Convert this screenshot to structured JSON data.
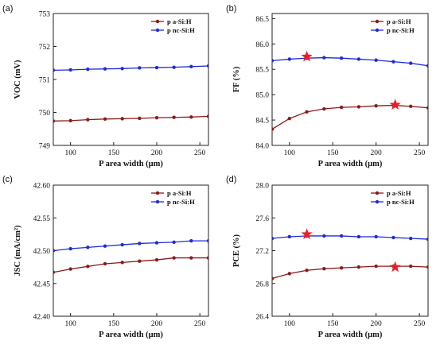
{
  "chart_data": [
    {
      "type": "line",
      "panel_label": "(a)",
      "xlabel": "P area width (μm)",
      "ylabel": "VOC (mV)",
      "xlim": [
        80,
        260
      ],
      "ylim": [
        749,
        753
      ],
      "xticks": [
        100,
        150,
        200,
        250
      ],
      "yticks": [
        749,
        750,
        751,
        752,
        753
      ],
      "yticklabels": [
        "749",
        "750",
        "751",
        "752",
        "753"
      ],
      "legend_position": "top-right",
      "series": [
        {
          "name": "p a-Si:H",
          "color": "#8b1a1a",
          "x": [
            80,
            100,
            120,
            140,
            160,
            180,
            200,
            220,
            240,
            260
          ],
          "values": [
            749.74,
            749.75,
            749.78,
            749.8,
            749.81,
            749.82,
            749.84,
            749.85,
            749.86,
            749.88
          ]
        },
        {
          "name": "p nc-Si:H",
          "color": "#1f2bd6",
          "x": [
            80,
            100,
            120,
            140,
            160,
            180,
            200,
            220,
            240,
            260
          ],
          "values": [
            751.28,
            751.29,
            751.31,
            751.32,
            751.33,
            751.35,
            751.36,
            751.37,
            751.39,
            751.41
          ]
        }
      ],
      "stars": []
    },
    {
      "type": "line",
      "panel_label": "(b)",
      "xlabel": "P area width (μm)",
      "ylabel": "FF (%)",
      "xlim": [
        80,
        260
      ],
      "ylim": [
        84.0,
        86.6
      ],
      "xticks": [
        100,
        150,
        200,
        250
      ],
      "yticks": [
        84.0,
        84.5,
        85.0,
        85.5,
        86.0,
        86.5
      ],
      "yticklabels": [
        "84.0",
        "84.5",
        "85.0",
        "85.5",
        "86.0",
        "86.5"
      ],
      "legend_position": "top-right",
      "series": [
        {
          "name": "p a-Si:H",
          "color": "#8b1a1a",
          "x": [
            80,
            100,
            120,
            140,
            160,
            180,
            200,
            220,
            240,
            260
          ],
          "values": [
            84.32,
            84.53,
            84.66,
            84.72,
            84.75,
            84.76,
            84.78,
            84.79,
            84.77,
            84.74
          ]
        },
        {
          "name": "p nc-Si:H",
          "color": "#1f2bd6",
          "x": [
            80,
            100,
            120,
            140,
            160,
            180,
            200,
            220,
            240,
            260
          ],
          "values": [
            85.67,
            85.7,
            85.72,
            85.73,
            85.72,
            85.7,
            85.68,
            85.65,
            85.62,
            85.57
          ]
        }
      ],
      "stars": [
        {
          "x": 120,
          "y": 85.75
        },
        {
          "x": 222,
          "y": 84.8
        }
      ]
    },
    {
      "type": "line",
      "panel_label": "(c)",
      "xlabel": "P area width (μm)",
      "ylabel": "JSC (mA/cm²)",
      "xlim": [
        80,
        260
      ],
      "ylim": [
        42.4,
        42.6
      ],
      "xticks": [
        100,
        150,
        200,
        250
      ],
      "yticks": [
        42.4,
        42.45,
        42.5,
        42.55,
        42.6
      ],
      "yticklabels": [
        "42.40",
        "42.45",
        "42.50",
        "42.55",
        "42.60"
      ],
      "legend_position": "top-right",
      "series": [
        {
          "name": "p a-Si:H",
          "color": "#8b1a1a",
          "x": [
            80,
            100,
            120,
            140,
            160,
            180,
            200,
            220,
            240,
            260
          ],
          "values": [
            42.467,
            42.472,
            42.476,
            42.48,
            42.482,
            42.484,
            42.486,
            42.489,
            42.489,
            42.489
          ]
        },
        {
          "name": "p nc-Si:H",
          "color": "#1f2bd6",
          "x": [
            80,
            100,
            120,
            140,
            160,
            180,
            200,
            220,
            240,
            260
          ],
          "values": [
            42.5,
            42.503,
            42.505,
            42.507,
            42.509,
            42.511,
            42.512,
            42.513,
            42.515,
            42.515
          ]
        }
      ],
      "stars": []
    },
    {
      "type": "line",
      "panel_label": "(d)",
      "xlabel": "P area width (μm)",
      "ylabel": "PCE (%)",
      "xlim": [
        80,
        260
      ],
      "ylim": [
        26.4,
        28.0
      ],
      "xticks": [
        100,
        150,
        200,
        250
      ],
      "yticks": [
        26.4,
        26.8,
        27.2,
        27.6,
        28.0
      ],
      "yticklabels": [
        "26.4",
        "26.8",
        "27.2",
        "27.6",
        "28.0"
      ],
      "legend_position": "top-right",
      "series": [
        {
          "name": "p a-Si:H",
          "color": "#8b1a1a",
          "x": [
            80,
            100,
            120,
            140,
            160,
            180,
            200,
            220,
            240,
            260
          ],
          "values": [
            26.86,
            26.92,
            26.96,
            26.98,
            26.99,
            27.0,
            27.01,
            27.01,
            27.01,
            27.0
          ]
        },
        {
          "name": "p nc-Si:H",
          "color": "#1f2bd6",
          "x": [
            80,
            100,
            120,
            140,
            160,
            180,
            200,
            220,
            240,
            260
          ],
          "values": [
            27.35,
            27.37,
            27.38,
            27.38,
            27.38,
            27.37,
            27.37,
            27.36,
            27.35,
            27.34
          ]
        }
      ],
      "stars": [
        {
          "x": 120,
          "y": 27.4
        },
        {
          "x": 222,
          "y": 27.0
        }
      ]
    }
  ]
}
